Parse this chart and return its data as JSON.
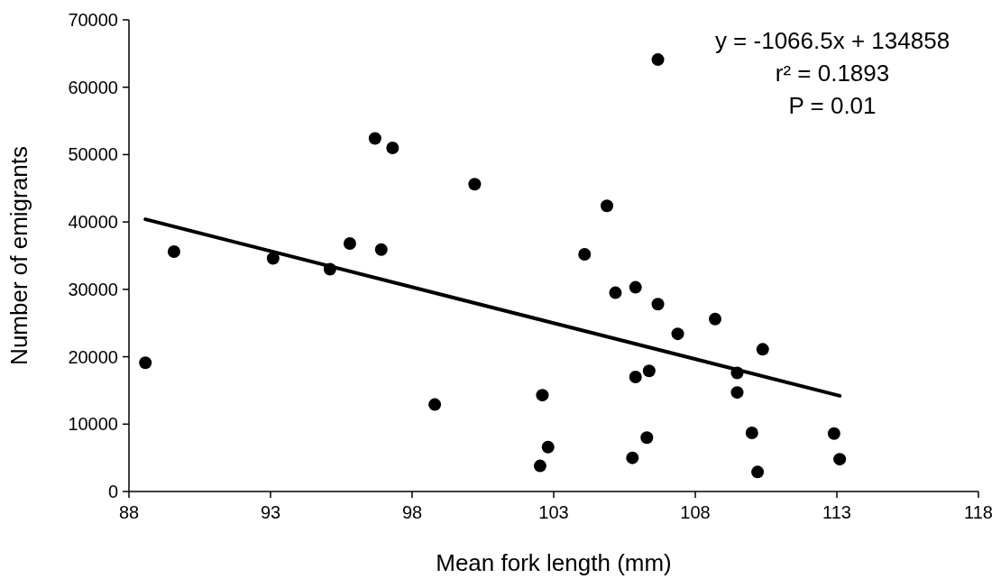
{
  "chart_data": {
    "type": "scatter",
    "xlabel": "Mean fork length (mm)",
    "ylabel": "Number of emigrants",
    "xlim": [
      88,
      118
    ],
    "xticks": [
      88,
      93,
      98,
      103,
      108,
      113,
      118
    ],
    "ylim": [
      0,
      70000
    ],
    "yticks": [
      0,
      10000,
      20000,
      30000,
      40000,
      50000,
      60000,
      70000
    ],
    "grid": false,
    "annotations": [
      "y = -1066.5x + 134858",
      "r² = 0.1893",
      "P = 0.01"
    ],
    "series": [
      {
        "color": "#000000",
        "marker": "circle",
        "x": [
          88.58,
          89.59,
          93.09,
          95.1,
          95.8,
          96.69,
          96.91,
          97.31,
          98.8,
          100.21,
          102.6,
          102.8,
          102.52,
          104.09,
          104.88,
          105.18,
          105.89,
          105.89,
          105.78,
          106.68,
          106.68,
          106.37,
          106.29,
          107.38,
          108.7,
          109.48,
          109.48,
          110.38,
          110.0,
          110.2,
          112.9,
          113.1
        ],
        "values": [
          19100,
          35600,
          34600,
          33000,
          36800,
          52400,
          35900,
          51000,
          12900,
          45600,
          14300,
          6600,
          3800,
          35200,
          42400,
          29500,
          30300,
          17000,
          5000,
          64100,
          27800,
          17900,
          8000,
          23400,
          25600,
          17600,
          14700,
          21100,
          8700,
          2900,
          8600,
          4800
        ]
      },
      {
        "type": "line",
        "color": "#000000",
        "line_style": "solid",
        "marker": "none",
        "x": [
          88.58,
          113.1
        ],
        "values": [
          40400,
          14200
        ]
      }
    ]
  }
}
